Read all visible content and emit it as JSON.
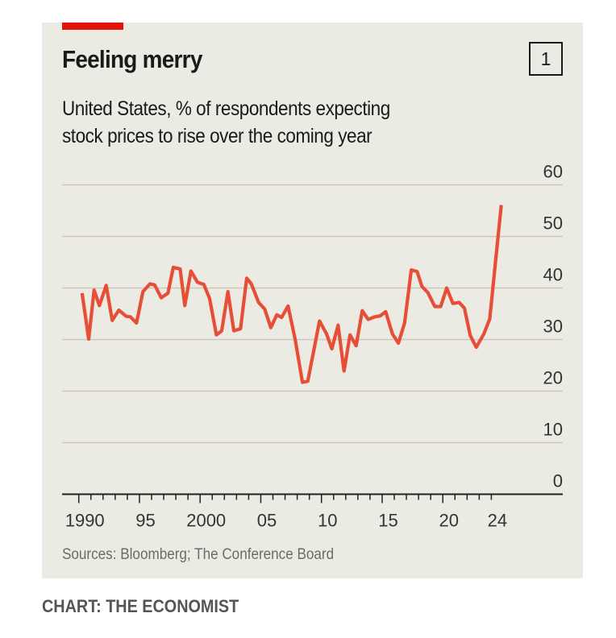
{
  "header": {
    "title": "Feeling merry",
    "subtitle_lines": [
      "United States, % of respondents expecting",
      "stock prices to rise over the coming year"
    ],
    "chart_number": "1"
  },
  "footer": {
    "source": "Sources: Bloomberg; The Conference Board",
    "credit": "CHART: THE ECONOMIST"
  },
  "colors": {
    "accent_bar": "#e3120b",
    "line": "#e64e37",
    "background": "#ecebe3",
    "grid": "#c9c8c0"
  },
  "chart_data": {
    "type": "line",
    "title": "Feeling merry",
    "subtitle": "United States, % of respondents expecting stock prices to rise over the coming year",
    "xlabel": "",
    "ylabel": "%",
    "xlim": [
      1990,
      2025
    ],
    "ylim": [
      0,
      60
    ],
    "grid": true,
    "y_axis_side": "right",
    "yticks": [
      0,
      10,
      20,
      30,
      40,
      50,
      60
    ],
    "ytick_labels": [
      "0",
      "10",
      "20",
      "30",
      "40",
      "50",
      "60"
    ],
    "xtick_years": [
      1990,
      1995,
      2000,
      2005,
      2010,
      2015,
      2020,
      2024
    ],
    "xtick_labels": [
      "1990",
      "95",
      "2000",
      "05",
      "10",
      "15",
      "20",
      "24"
    ],
    "minor_tick_range": [
      1990,
      2024
    ],
    "series": [
      {
        "name": "% expecting stock prices to rise",
        "x": [
          1990.27,
          1990.82,
          1991.26,
          1991.7,
          1992.26,
          1992.76,
          1993.3,
          1993.92,
          1994.25,
          1994.76,
          1995.29,
          1995.87,
          1996.25,
          1996.8,
          1997.35,
          1997.79,
          1998.35,
          1998.74,
          1999.24,
          1999.79,
          2000.3,
          2000.78,
          2001.34,
          2001.78,
          2002.29,
          2002.78,
          2003.33,
          2003.84,
          2004.22,
          2004.82,
          2005.32,
          2005.83,
          2006.32,
          2006.72,
          2007.25,
          2007.83,
          2008.43,
          2008.87,
          2009.84,
          2010.42,
          2010.86,
          2011.37,
          2011.86,
          2012.35,
          2012.86,
          2013.36,
          2013.85,
          2014.4,
          2014.85,
          2015.29,
          2015.85,
          2016.34,
          2016.85,
          2017.4,
          2017.88,
          2018.28,
          2018.77,
          2019.34,
          2019.83,
          2020.32,
          2020.83,
          2021.34,
          2021.78,
          2022.26,
          2022.76,
          2023.38,
          2023.87,
          2024.82
        ],
        "values": [
          39.0,
          30.1,
          39.6,
          36.6,
          40.5,
          33.7,
          35.7,
          34.5,
          34.4,
          33.2,
          39.3,
          40.8,
          40.6,
          38.1,
          39.0,
          44.0,
          43.7,
          36.6,
          43.3,
          41.1,
          40.7,
          38.0,
          30.9,
          31.7,
          39.3,
          31.7,
          32.1,
          41.9,
          40.8,
          37.2,
          35.9,
          32.3,
          34.8,
          34.3,
          36.5,
          30.1,
          21.7,
          21.9,
          33.6,
          31.1,
          28.2,
          32.8,
          23.9,
          30.9,
          28.8,
          35.6,
          33.9,
          34.4,
          34.6,
          35.4,
          31.1,
          29.3,
          33.2,
          43.5,
          43.2,
          40.3,
          39.1,
          36.4,
          36.4,
          40.0,
          37.0,
          37.2,
          36.1,
          30.8,
          28.5,
          31.1,
          34.0,
          56.1
        ]
      }
    ]
  }
}
